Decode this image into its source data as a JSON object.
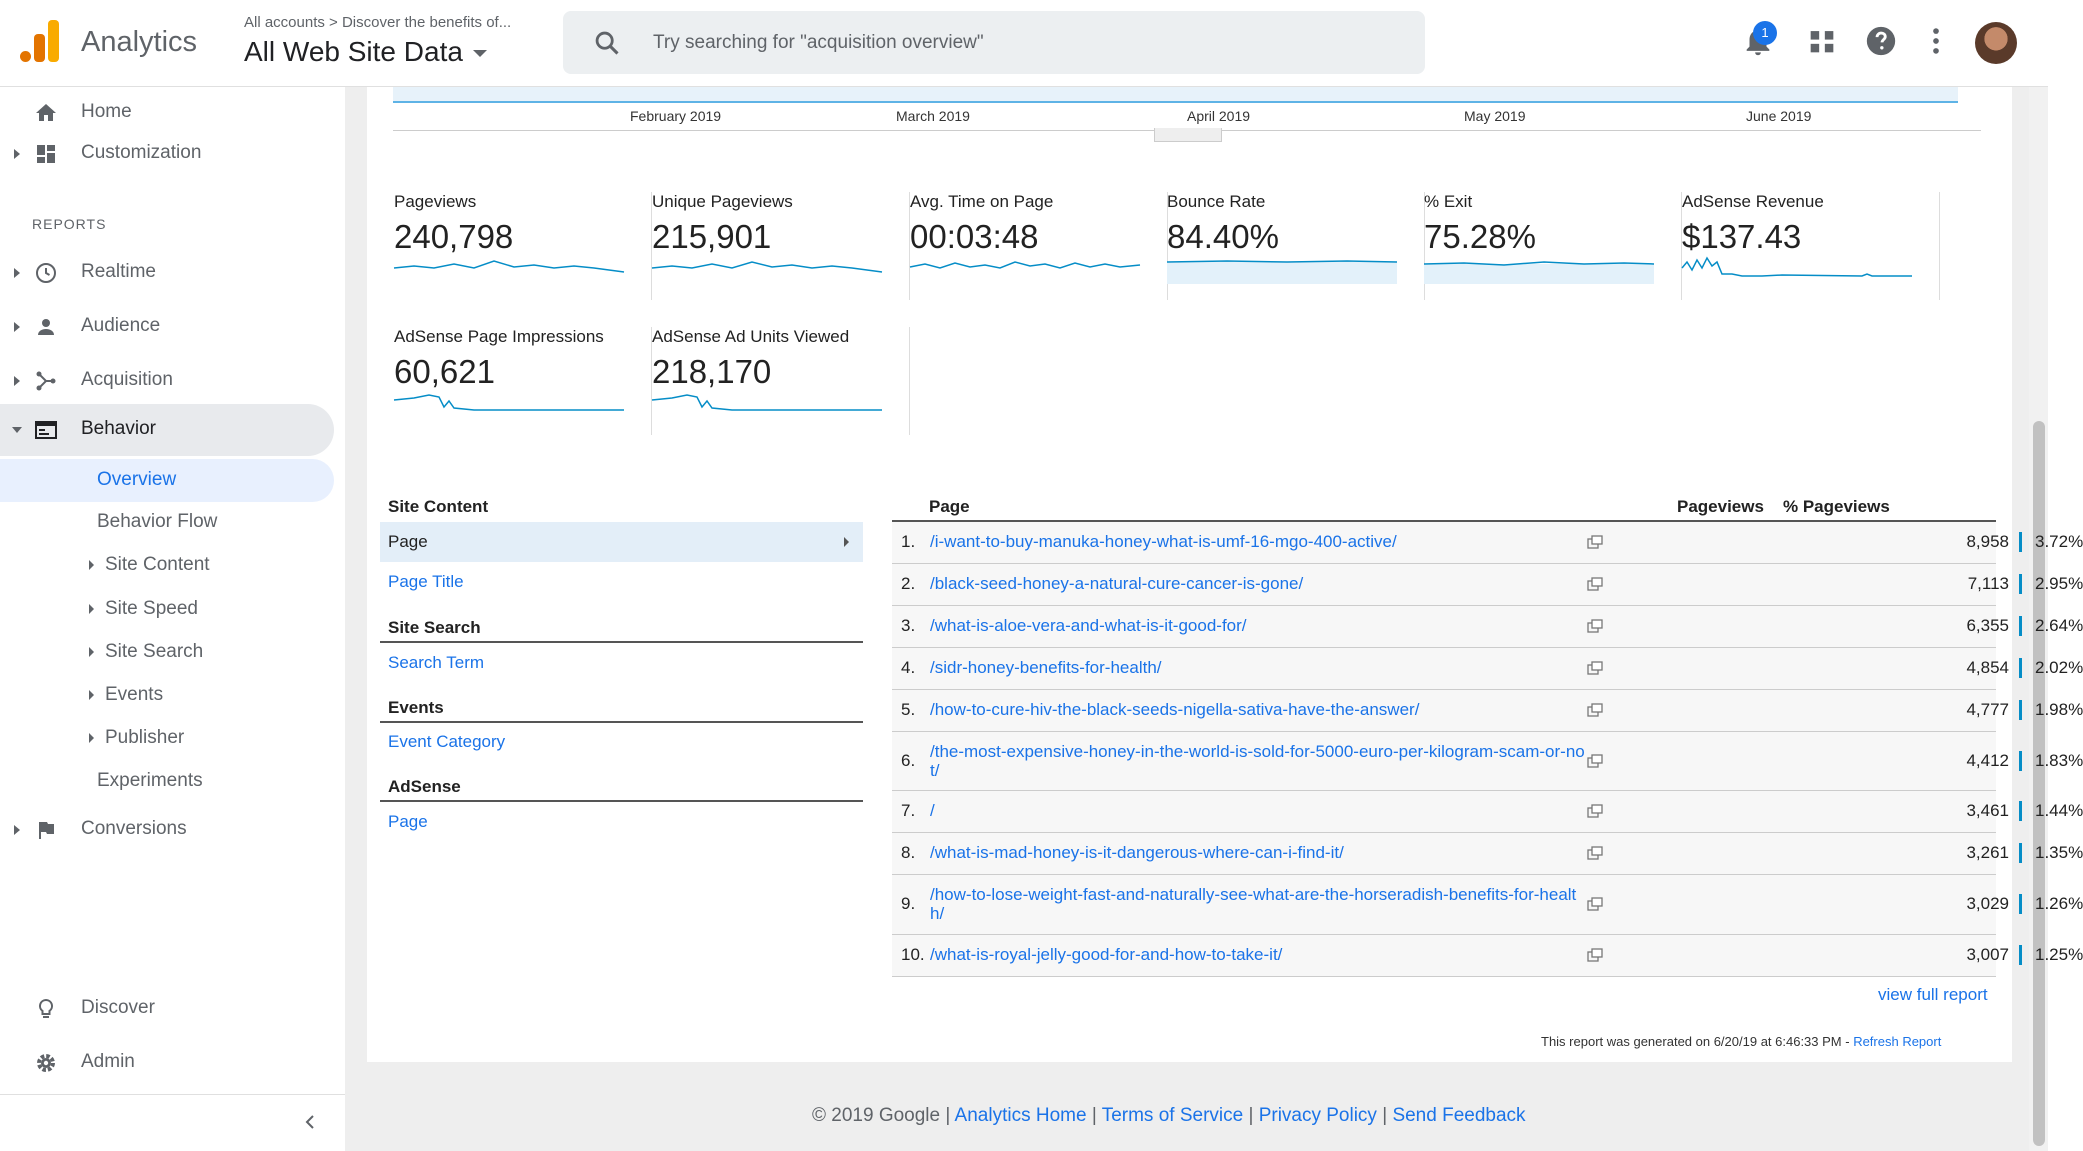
{
  "topbar": {
    "app_name": "Analytics",
    "breadcrumb": "All accounts > Discover the benefits of...",
    "view_name": "All Web Site Data",
    "search_placeholder": "Try searching for \"acquisition overview\"",
    "notifications_count": "1"
  },
  "sidebar": {
    "home": "Home",
    "customization": "Customization",
    "reports_header": "REPORTS",
    "realtime": "Realtime",
    "audience": "Audience",
    "acquisition": "Acquisition",
    "behavior": "Behavior",
    "behavior_sub": [
      "Overview",
      "Behavior Flow",
      "Site Content",
      "Site Speed",
      "Site Search",
      "Events",
      "Publisher",
      "Experiments"
    ],
    "conversions": "Conversions",
    "discover": "Discover",
    "admin": "Admin"
  },
  "timeline": {
    "months": [
      "February 2019",
      "March 2019",
      "April 2019",
      "May 2019",
      "June 2019"
    ]
  },
  "metrics": [
    {
      "label": "Pageviews",
      "value": "240,798"
    },
    {
      "label": "Unique Pageviews",
      "value": "215,901"
    },
    {
      "label": "Avg. Time on Page",
      "value": "00:03:48"
    },
    {
      "label": "Bounce Rate",
      "value": "84.40%"
    },
    {
      "label": "% Exit",
      "value": "75.28%"
    },
    {
      "label": "AdSense Revenue",
      "value": "$137.43"
    },
    {
      "label": "AdSense Page Impressions",
      "value": "60,621"
    },
    {
      "label": "AdSense Ad Units Viewed",
      "value": "218,170"
    }
  ],
  "site_content": {
    "heading": "Site Content",
    "selected": "Page",
    "page_title": "Page Title",
    "site_search_heading": "Site Search",
    "search_term": "Search Term",
    "events_heading": "Events",
    "event_category": "Event Category",
    "adsense_heading": "AdSense",
    "adsense_page": "Page"
  },
  "table": {
    "col_page": "Page",
    "col_pageviews": "Pageviews",
    "col_pct": "% Pageviews",
    "rows": [
      {
        "num": "1.",
        "url": "/i-want-to-buy-manuka-honey-what-is-umf-16-mgo-400-active/",
        "pageviews": "8,958",
        "pct": "3.72%"
      },
      {
        "num": "2.",
        "url": "/black-seed-honey-a-natural-cure-cancer-is-gone/",
        "pageviews": "7,113",
        "pct": "2.95%"
      },
      {
        "num": "3.",
        "url": "/what-is-aloe-vera-and-what-is-it-good-for/",
        "pageviews": "6,355",
        "pct": "2.64%"
      },
      {
        "num": "4.",
        "url": "/sidr-honey-benefits-for-health/",
        "pageviews": "4,854",
        "pct": "2.02%"
      },
      {
        "num": "5.",
        "url": "/how-to-cure-hiv-the-black-seeds-nigella-sativa-have-the-answer/",
        "pageviews": "4,777",
        "pct": "1.98%"
      },
      {
        "num": "6.",
        "url": "/the-most-expensive-honey-in-the-world-is-sold-for-5000-euro-per-kilogram-scam-or-not/",
        "pageviews": "4,412",
        "pct": "1.83%"
      },
      {
        "num": "7.",
        "url": "/",
        "pageviews": "3,461",
        "pct": "1.44%"
      },
      {
        "num": "8.",
        "url": "/what-is-mad-honey-is-it-dangerous-where-can-i-find-it/",
        "pageviews": "3,261",
        "pct": "1.35%"
      },
      {
        "num": "9.",
        "url": "/how-to-lose-weight-fast-and-naturally-see-what-are-the-horseradish-benefits-for-health/",
        "pageviews": "3,029",
        "pct": "1.26%"
      },
      {
        "num": "10.",
        "url": "/what-is-royal-jelly-good-for-and-how-to-take-it/",
        "pageviews": "3,007",
        "pct": "1.25%"
      }
    ],
    "view_full_report": "view full report",
    "generated_text": "This report was generated on 6/20/19 at 6:46:33 PM - ",
    "refresh_report": "Refresh Report"
  },
  "footer": {
    "copyright": "© 2019 Google | ",
    "analytics_home": "Analytics Home",
    "sep": " | ",
    "terms": "Terms of Service",
    "privacy": "Privacy Policy",
    "feedback": "Send Feedback"
  },
  "colors": {
    "accent": "#1a73e8",
    "sparkline": "#058dc7",
    "logo_orange": "#F9AB00"
  }
}
